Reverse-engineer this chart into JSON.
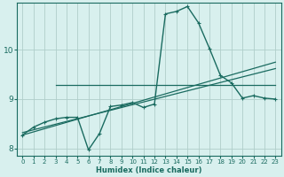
{
  "xlabel": "Humidex (Indice chaleur)",
  "bg_color": "#d8f0ee",
  "grid_color": "#b0ceca",
  "line_color": "#1a6b60",
  "xlim": [
    -0.5,
    23.5
  ],
  "ylim": [
    7.85,
    10.95
  ],
  "xticks": [
    0,
    1,
    2,
    3,
    4,
    5,
    6,
    7,
    8,
    9,
    10,
    11,
    12,
    13,
    14,
    15,
    16,
    17,
    18,
    19,
    20,
    21,
    22,
    23
  ],
  "yticks": [
    8,
    9,
    10
  ],
  "line1_x": [
    0,
    23
  ],
  "line1_y": [
    8.27,
    9.75
  ],
  "line2_x": [
    0,
    23
  ],
  "line2_y": [
    8.32,
    9.62
  ],
  "line3_x": [
    3,
    4,
    5,
    6,
    7,
    8,
    9,
    10,
    11,
    12,
    13,
    14,
    15,
    16,
    17,
    18,
    19,
    20,
    21,
    22,
    23
  ],
  "line3_y": [
    9.28,
    9.28,
    9.28,
    9.28,
    9.28,
    9.28,
    9.28,
    9.28,
    9.28,
    9.28,
    9.28,
    9.28,
    9.28,
    9.28,
    9.28,
    9.28,
    9.28,
    9.28,
    9.28,
    9.28,
    9.28
  ],
  "main_x": [
    0,
    1,
    2,
    3,
    4,
    5,
    6,
    7,
    8,
    9,
    10,
    11,
    12,
    13,
    14,
    15,
    16,
    17,
    18,
    19,
    20,
    21,
    22,
    23
  ],
  "main_y": [
    8.27,
    8.43,
    8.53,
    8.6,
    8.63,
    8.63,
    7.97,
    8.3,
    8.85,
    8.88,
    8.93,
    8.83,
    8.9,
    10.73,
    10.78,
    10.88,
    10.55,
    10.03,
    9.48,
    9.33,
    9.02,
    9.07,
    9.02,
    9.0
  ]
}
